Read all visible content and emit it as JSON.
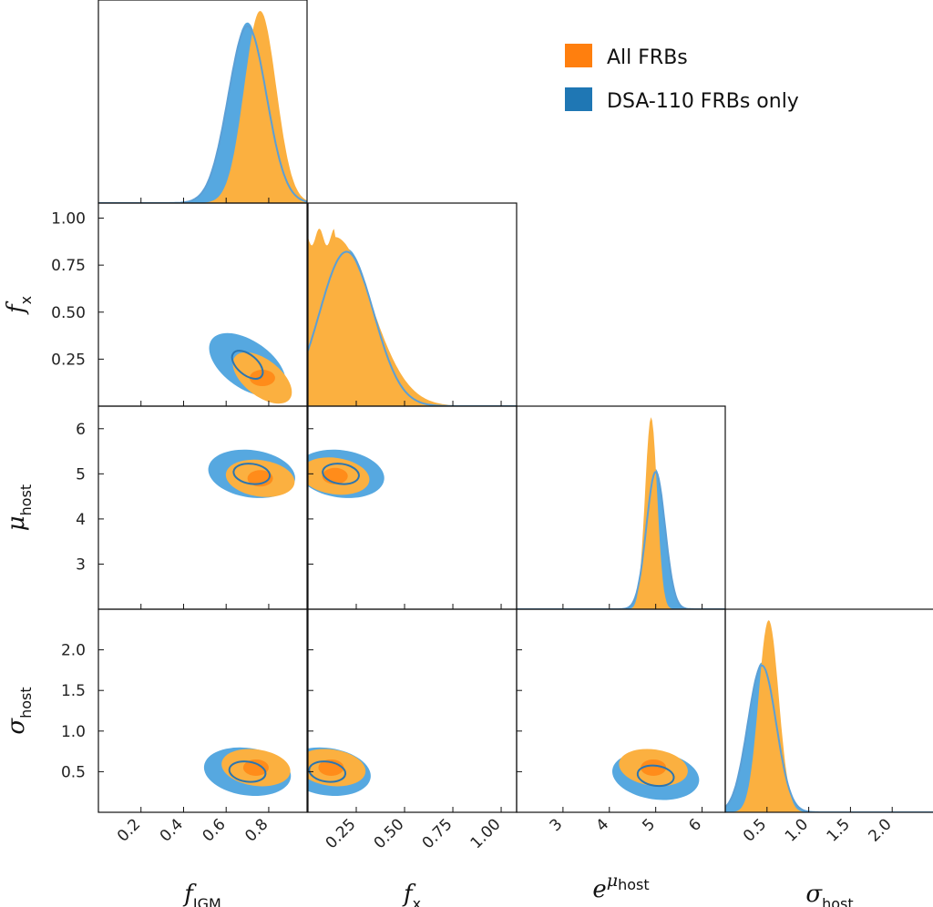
{
  "chart_data": {
    "type": "corner",
    "parameters": [
      {
        "key": "f_igm",
        "label_main": "f",
        "label_sub": "IGM",
        "range": [
          0,
          0.98
        ],
        "ticks": [
          0.2,
          0.4,
          0.6,
          0.8
        ],
        "tick_labels": [
          "0.2",
          "0.4",
          "0.6",
          "0.8"
        ]
      },
      {
        "key": "f_x",
        "label_main": "f",
        "label_sub": "x",
        "range": [
          0,
          1.08
        ],
        "ticks": [
          0.25,
          0.5,
          0.75,
          1.0
        ],
        "tick_labels": [
          "0.25",
          "0.50",
          "0.75",
          "1.00"
        ]
      },
      {
        "key": "mu_host",
        "label_main": "μ",
        "label_sub": "host",
        "range": [
          2.0,
          6.5
        ],
        "ticks": [
          3,
          4,
          5,
          6
        ],
        "tick_labels": [
          "3",
          "4",
          "5",
          "6"
        ],
        "x_label_main": "e",
        "x_label_sup": "μ",
        "x_label_sup_sub": "host"
      },
      {
        "key": "sigma_host",
        "label_main": "σ",
        "label_sub": "host",
        "range": [
          0,
          2.5
        ],
        "ticks": [
          0.5,
          1.0,
          1.5,
          2.0
        ],
        "tick_labels": [
          "0.5",
          "1.0",
          "1.5",
          "2.0"
        ]
      }
    ],
    "series": [
      {
        "name": "All FRBs",
        "color": "#ff7f0e",
        "fill": "#fbb040",
        "marginals": {
          "f_igm": {
            "mode": 0.76,
            "sigma": 0.075,
            "peak": 1.0
          },
          "f_x": {
            "flat_top": [
              0.0,
              0.14
            ],
            "falloff": 0.3,
            "peak": 0.88
          },
          "mu_host": {
            "mode": 4.9,
            "sigma": 0.13,
            "peak": 1.0
          },
          "sigma_host": {
            "mode": 0.52,
            "sigma": 0.12,
            "peak": 1.0
          }
        },
        "joint": {
          "f_igm|f_x": {
            "center": [
              0.77,
              0.15
            ]
          },
          "f_igm|mu_host": {
            "center": [
              0.76,
              4.9
            ]
          },
          "f_x|mu_host": {
            "center": [
              0.14,
              4.95
            ]
          },
          "f_igm|sigma_host": {
            "center": [
              0.74,
              0.55
            ]
          },
          "f_x|sigma_host": {
            "center": [
              0.12,
              0.55
            ]
          },
          "mu_host|sigma_host": {
            "center": [
              4.95,
              0.55
            ]
          }
        }
      },
      {
        "name": "DSA-110 FRBs only",
        "color": "#1f77b4",
        "fill": "#56a8e0",
        "marginals": {
          "f_igm": {
            "mode": 0.7,
            "sigma": 0.09,
            "peak": 0.94
          },
          "f_x": {
            "mode": 0.2,
            "sigma": 0.14,
            "peak": 0.82
          },
          "mu_host": {
            "mode": 5.0,
            "sigma": 0.2,
            "peak": 0.73
          },
          "sigma_host": {
            "mode": 0.44,
            "sigma": 0.17,
            "peak": 0.78
          }
        },
        "joint": {
          "f_igm|f_x": {
            "center": [
              0.7,
              0.22
            ]
          },
          "f_igm|mu_host": {
            "center": [
              0.72,
              5.0
            ]
          },
          "f_x|mu_host": {
            "center": [
              0.17,
              5.0
            ]
          },
          "f_igm|sigma_host": {
            "center": [
              0.7,
              0.5
            ]
          },
          "f_x|sigma_host": {
            "center": [
              0.1,
              0.5
            ]
          },
          "mu_host|sigma_host": {
            "center": [
              5.0,
              0.45
            ]
          }
        }
      }
    ],
    "legend": {
      "position": "top-right",
      "entries": [
        "All FRBs",
        "DSA-110 FRBs only"
      ]
    }
  }
}
